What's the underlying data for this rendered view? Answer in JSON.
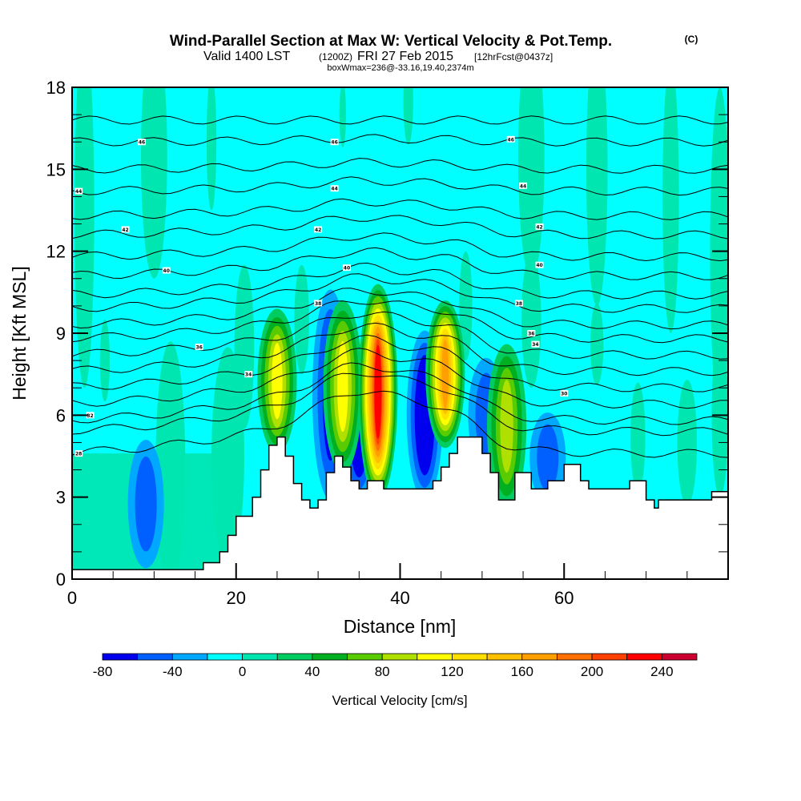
{
  "header": {
    "title": "Wind-Parallel Section at Max W: Vertical Velocity & Pot.Temp.",
    "copyright": "(C)",
    "subtitle_main": "Valid 1400 LST",
    "subtitle_utc": "(1200Z)",
    "subtitle_date": "FRI 27 Feb 2015",
    "subtitle_fcst": "[12hrFcst@0437z]",
    "box_info": "boxWmax=236@-33.16,19.40,2374m"
  },
  "chart_data": {
    "type": "heatmap",
    "title": "Wind-Parallel Section at Max W: Vertical Velocity & Pot.Temp.",
    "xlabel": "Distance [nm]",
    "ylabel": "Height [Kft MSL]",
    "xlim": [
      0,
      80
    ],
    "ylim": [
      0,
      18
    ],
    "xticks": [
      "0",
      "20",
      "40",
      "60"
    ],
    "xtick_values": [
      0,
      20,
      40,
      60
    ],
    "yticks": [
      "0",
      "3",
      "6",
      "9",
      "12",
      "15",
      "18"
    ],
    "ytick_values": [
      0,
      3,
      6,
      9,
      12,
      15,
      18
    ],
    "colorbar": {
      "label": "Vertical Velocity [cm/s]",
      "ticks": [
        "-80",
        "-40",
        "0",
        "40",
        "80",
        "120",
        "160",
        "200",
        "240"
      ],
      "tick_values": [
        -80,
        -40,
        0,
        40,
        80,
        120,
        160,
        200,
        240
      ],
      "levels": [
        -80,
        -60,
        -40,
        -20,
        0,
        20,
        40,
        60,
        80,
        100,
        120,
        140,
        160,
        180,
        200,
        220,
        240,
        260
      ],
      "colors": [
        "#0000ee",
        "#0060ff",
        "#00a8ff",
        "#00ffff",
        "#00e6b0",
        "#00cc60",
        "#00b020",
        "#58cc00",
        "#b0e000",
        "#ffff00",
        "#ffe000",
        "#ffc000",
        "#ffa000",
        "#ff7000",
        "#ff4000",
        "#ff0000",
        "#cc0030"
      ]
    },
    "background_color": "#00ffff",
    "updrafts": [
      {
        "x": 25,
        "top": 9.3,
        "bottom": 5.2,
        "peak": 110
      },
      {
        "x": 33,
        "top": 9.6,
        "bottom": 4.5,
        "peak": 110
      },
      {
        "x": 37.3,
        "top": 10.2,
        "bottom": 3.5,
        "peak": 236
      },
      {
        "x": 45.5,
        "top": 9.6,
        "bottom": 5.4,
        "peak": 170
      },
      {
        "x": 53,
        "top": 8.0,
        "bottom": 3.2,
        "peak": 80
      }
    ],
    "downdrafts": [
      {
        "x": 31.5,
        "top": 10.0,
        "bottom": 3.5,
        "peak": -60
      },
      {
        "x": 35,
        "top": 8.0,
        "bottom": 3.5,
        "peak": -80
      },
      {
        "x": 43,
        "top": 8.5,
        "bottom": 3.5,
        "peak": -80
      },
      {
        "x": 50.5,
        "top": 7.5,
        "bottom": 4.5,
        "peak": -40
      },
      {
        "x": 58,
        "top": 5.5,
        "bottom": 3.4,
        "peak": -40
      },
      {
        "x": 9,
        "top": 4.5,
        "bottom": 1.0,
        "peak": -40
      }
    ],
    "theta_contours": {
      "interval": 2,
      "labels": [
        "46",
        "46",
        "46",
        "44",
        "44",
        "44",
        "42",
        "42",
        "42",
        "40",
        "40",
        "40",
        "38",
        "38",
        "36",
        "36",
        "34",
        "34",
        "32",
        "30",
        "28"
      ],
      "levels": [
        46,
        45,
        44,
        43,
        42,
        41,
        40,
        39,
        38,
        37,
        36,
        35,
        34,
        33,
        32,
        31,
        30,
        29,
        28
      ]
    },
    "terrain_kft": [
      [
        0,
        0.35
      ],
      [
        16,
        0.35
      ],
      [
        16,
        0.6
      ],
      [
        18,
        0.6
      ],
      [
        18,
        1.0
      ],
      [
        19,
        1.0
      ],
      [
        19,
        1.6
      ],
      [
        20,
        1.6
      ],
      [
        20,
        2.3
      ],
      [
        22,
        2.3
      ],
      [
        22,
        3.0
      ],
      [
        23,
        3.0
      ],
      [
        23,
        4.0
      ],
      [
        24,
        4.0
      ],
      [
        24,
        4.9
      ],
      [
        25,
        4.9
      ],
      [
        25,
        5.2
      ],
      [
        26,
        5.2
      ],
      [
        26,
        4.5
      ],
      [
        27,
        4.5
      ],
      [
        27,
        3.5
      ],
      [
        28,
        3.5
      ],
      [
        28,
        2.9
      ],
      [
        29,
        2.9
      ],
      [
        29,
        2.6
      ],
      [
        30,
        2.6
      ],
      [
        30,
        2.9
      ],
      [
        31,
        2.9
      ],
      [
        31,
        3.9
      ],
      [
        32,
        3.9
      ],
      [
        32,
        4.5
      ],
      [
        33,
        4.5
      ],
      [
        33,
        4.1
      ],
      [
        34,
        4.1
      ],
      [
        34,
        3.6
      ],
      [
        35,
        3.6
      ],
      [
        35,
        3.3
      ],
      [
        36,
        3.3
      ],
      [
        36,
        3.6
      ],
      [
        38,
        3.6
      ],
      [
        38,
        3.3
      ],
      [
        44,
        3.3
      ],
      [
        44,
        3.6
      ],
      [
        45,
        3.6
      ],
      [
        45,
        4.1
      ],
      [
        46,
        4.1
      ],
      [
        46,
        4.6
      ],
      [
        47,
        4.6
      ],
      [
        47,
        5.2
      ],
      [
        50,
        5.2
      ],
      [
        50,
        4.6
      ],
      [
        51,
        4.6
      ],
      [
        51,
        3.9
      ],
      [
        52,
        3.9
      ],
      [
        52,
        2.9
      ],
      [
        54,
        2.9
      ],
      [
        54,
        3.9
      ],
      [
        56,
        3.9
      ],
      [
        56,
        3.3
      ],
      [
        58,
        3.3
      ],
      [
        58,
        3.6
      ],
      [
        60,
        3.6
      ],
      [
        60,
        4.2
      ],
      [
        62,
        4.2
      ],
      [
        62,
        3.6
      ],
      [
        63,
        3.6
      ],
      [
        63,
        3.3
      ],
      [
        68,
        3.3
      ],
      [
        68,
        3.6
      ],
      [
        70,
        3.6
      ],
      [
        70,
        2.9
      ],
      [
        71,
        2.9
      ],
      [
        71,
        2.6
      ],
      [
        71.5,
        2.6
      ],
      [
        71.5,
        2.9
      ],
      [
        78,
        2.9
      ],
      [
        78,
        3.2
      ],
      [
        80,
        3.2
      ]
    ]
  }
}
